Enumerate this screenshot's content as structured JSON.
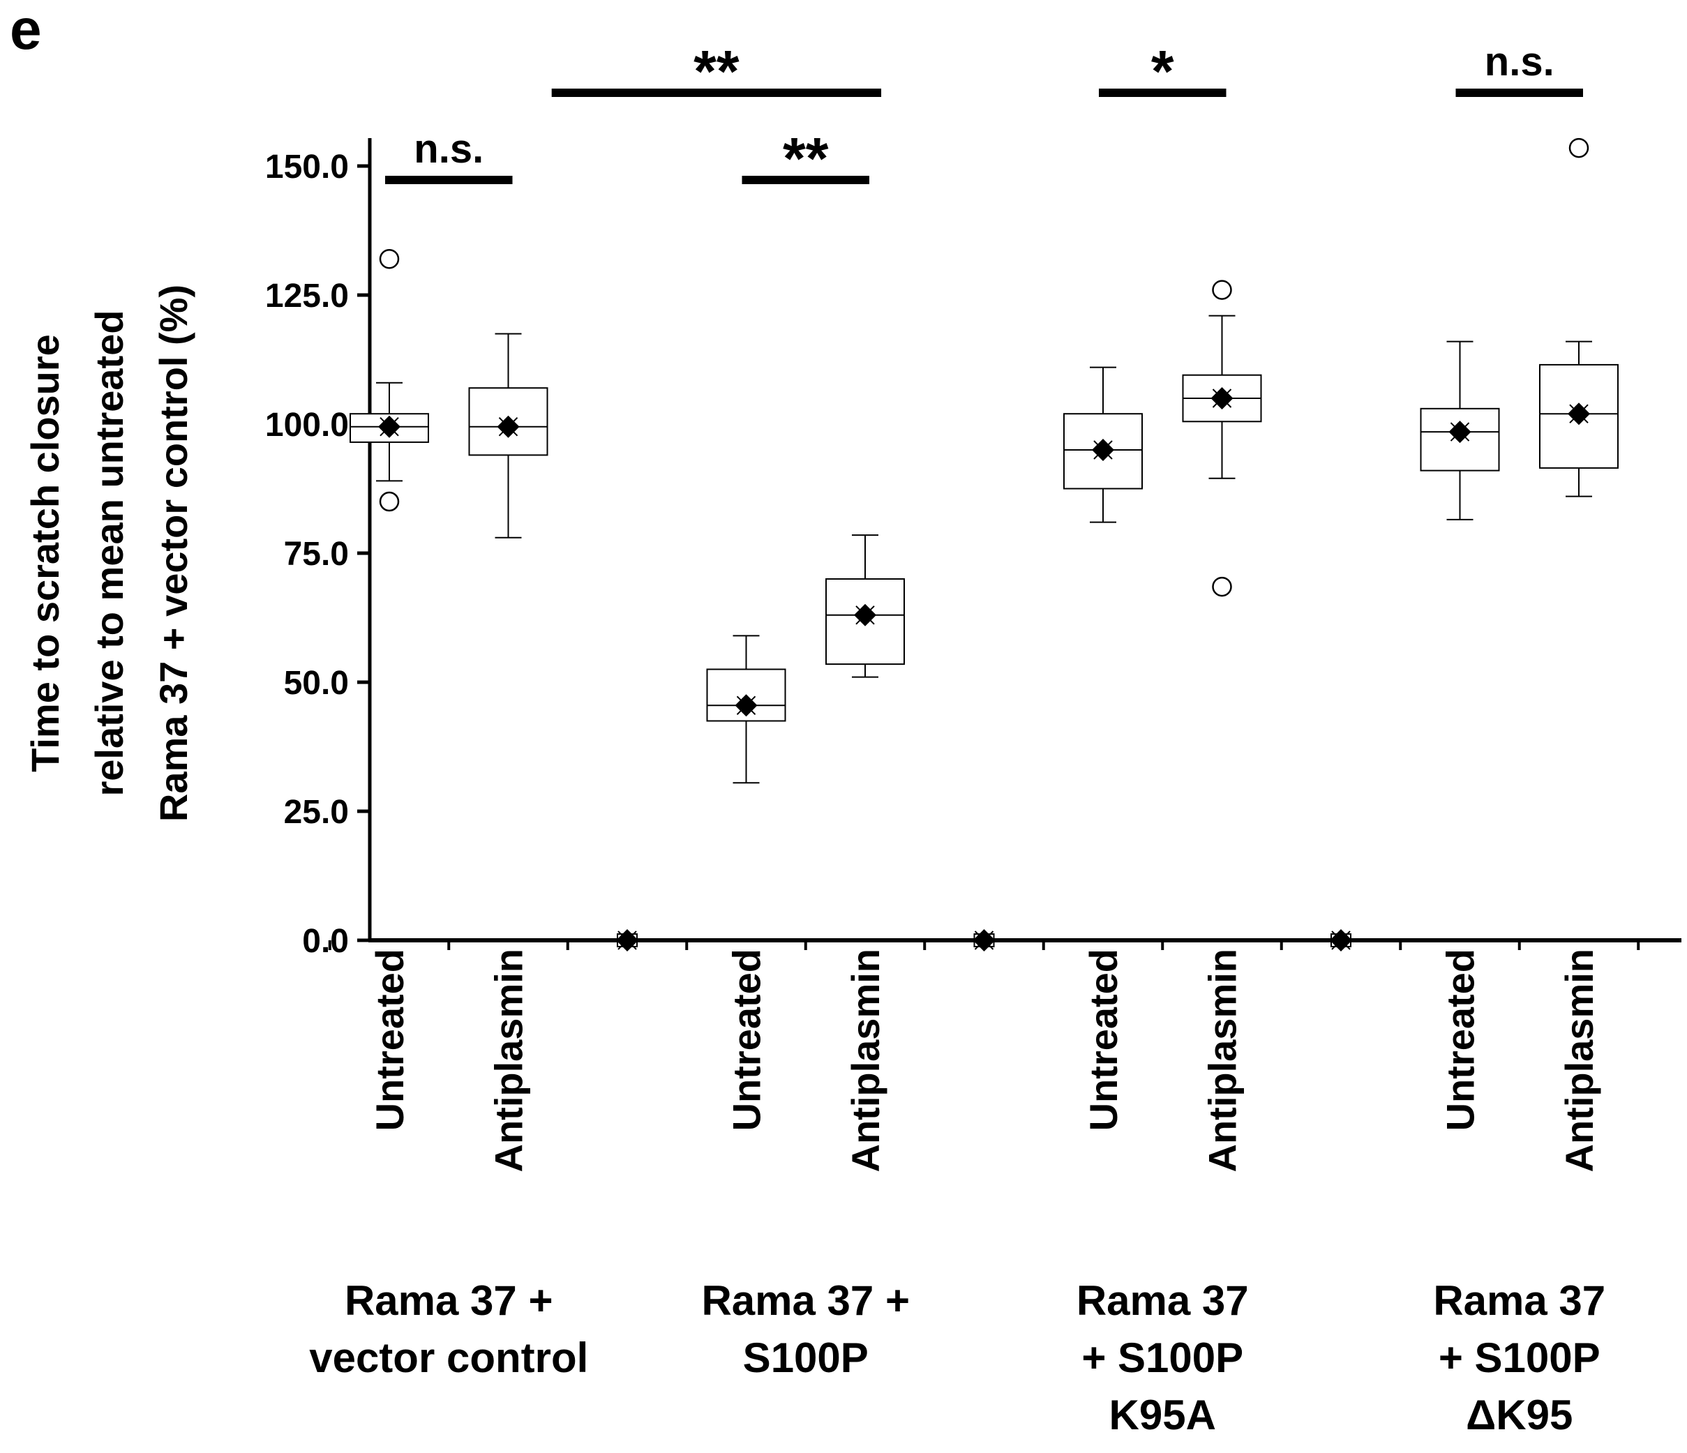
{
  "panel_label": "e",
  "chart_data": {
    "type": "boxplot",
    "title": "",
    "ylabel_lines": [
      "Time to scratch closure",
      "relative to mean untreated",
      "Rama 37 + vector control (%)"
    ],
    "ylim": [
      0,
      150
    ],
    "yticks": [
      0,
      25,
      50,
      75,
      100,
      125,
      150
    ],
    "ytick_labels": [
      "0.0",
      "25.0",
      "50.0",
      "75.0",
      "100.0",
      "125.0",
      "150.0"
    ],
    "categories": [
      "Untreated",
      "Antiplasmin",
      "",
      "Untreated",
      "Antiplasmin",
      "",
      "Untreated",
      "Antiplasmin",
      "",
      "Untreated",
      "Antiplasmin"
    ],
    "boxes": [
      {
        "cat": 0,
        "label": "Untreated",
        "q1": 96.5,
        "median": 99.5,
        "q3": 102,
        "whisker_low": 89,
        "whisker_high": 108,
        "mean": 99.5,
        "outliers": [
          132,
          85
        ]
      },
      {
        "cat": 1,
        "label": "Antiplasmin",
        "q1": 94,
        "median": 99.5,
        "q3": 107,
        "whisker_low": 78,
        "whisker_high": 117.5,
        "mean": 99.5,
        "outliers": []
      },
      {
        "cat": 3,
        "label": "Untreated",
        "q1": 42.5,
        "median": 45.5,
        "q3": 52.5,
        "whisker_low": 30.5,
        "whisker_high": 59,
        "mean": 45.5,
        "outliers": []
      },
      {
        "cat": 4,
        "label": "Antiplasmin",
        "q1": 53.5,
        "median": 63,
        "q3": 70,
        "whisker_low": 51,
        "whisker_high": 78.5,
        "mean": 63,
        "outliers": []
      },
      {
        "cat": 6,
        "label": "Untreated",
        "q1": 87.5,
        "median": 95,
        "q3": 102,
        "whisker_low": 81,
        "whisker_high": 111,
        "mean": 95,
        "outliers": []
      },
      {
        "cat": 7,
        "label": "Antiplasmin",
        "q1": 100.5,
        "median": 105,
        "q3": 109.5,
        "whisker_low": 89.5,
        "whisker_high": 121,
        "mean": 105,
        "outliers": [
          126,
          68.5
        ]
      },
      {
        "cat": 9,
        "label": "Untreated",
        "q1": 91,
        "median": 98.5,
        "q3": 103,
        "whisker_low": 81.5,
        "whisker_high": 116,
        "mean": 98.5,
        "outliers": []
      },
      {
        "cat": 10,
        "label": "Antiplasmin",
        "q1": 91.5,
        "median": 102,
        "q3": 111.5,
        "whisker_low": 86,
        "whisker_high": 116,
        "mean": 102,
        "outliers": [
          153.5
        ]
      }
    ],
    "zero_markers": [
      2,
      5,
      8
    ],
    "groups": [
      {
        "lines": [
          "Rama 37 +",
          "vector control"
        ],
        "cats": [
          0,
          1
        ]
      },
      {
        "lines": [
          "Rama 37 +",
          "S100P"
        ],
        "cats": [
          3,
          4
        ]
      },
      {
        "lines": [
          "Rama 37",
          "+ S100P",
          "K95A"
        ],
        "cats": [
          6,
          7
        ]
      },
      {
        "lines": [
          "Rama 37",
          "+ S100P",
          "ΔK95"
        ],
        "cats": [
          9,
          10
        ]
      }
    ],
    "significance": [
      {
        "label": "n.s.",
        "from": 0,
        "to": 1,
        "level": 1
      },
      {
        "label": "**",
        "from": 3,
        "to": 4,
        "level": 1
      },
      {
        "label": "**",
        "from": 1.4,
        "to": 4.1,
        "level": 2
      },
      {
        "label": "*",
        "from": 6,
        "to": 7,
        "level": 2
      },
      {
        "label": "n.s.",
        "from": 9,
        "to": 10,
        "level": 2
      }
    ]
  }
}
